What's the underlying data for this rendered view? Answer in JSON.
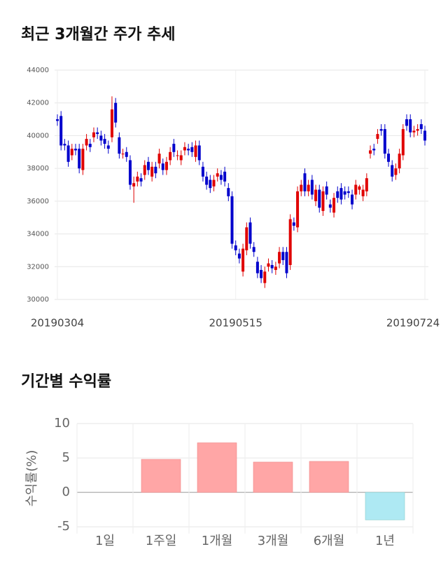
{
  "chart_data": [
    {
      "type": "candlestick",
      "title": "최근 3개월간 주가 추세",
      "categories": [
        "20190304",
        null,
        null,
        null,
        null,
        null,
        null,
        null,
        null,
        null,
        null,
        null,
        null,
        null,
        null,
        null,
        null,
        null,
        null,
        null,
        null,
        null,
        null,
        null,
        null,
        null,
        null,
        null,
        null,
        null,
        null,
        null,
        null,
        null,
        null,
        null,
        null,
        null,
        null,
        null,
        null,
        null,
        null,
        null,
        null,
        null,
        null,
        null,
        null,
        "20190515",
        null,
        null,
        null,
        null,
        null,
        null,
        null,
        null,
        null,
        null,
        null,
        null,
        null,
        null,
        null,
        null,
        null,
        null,
        null,
        null,
        null,
        null,
        null,
        null,
        null,
        null,
        null,
        null,
        null,
        null,
        null,
        null,
        null,
        null,
        null,
        null,
        null,
        null,
        null,
        null,
        null,
        null,
        null,
        null,
        null,
        null,
        null,
        null,
        null,
        null,
        null,
        "20190724"
      ],
      "open": [
        41000,
        41200,
        39500,
        39400,
        38800,
        39200,
        39200,
        37900,
        39400,
        39500,
        39900,
        40200,
        40000,
        39800,
        39400,
        39900,
        42000,
        39900,
        38900,
        39000,
        38500,
        36900,
        37200,
        37400,
        37600,
        38400,
        37500,
        38100,
        38300,
        38300,
        37900,
        38500,
        39500,
        38800,
        38500,
        39100,
        39200,
        39300,
        38700,
        39400,
        38100,
        37500,
        37300,
        36900,
        37500,
        37600,
        37800,
        36800,
        36300,
        33300,
        32800,
        31700,
        33000,
        34700,
        33200,
        32300,
        31800,
        31000,
        32000,
        32100,
        31800,
        32200,
        32900,
        32900,
        32100,
        34700,
        34400,
        36600,
        37700,
        36600,
        37300,
        36000,
        36700,
        35400,
        36900,
        35800,
        35300,
        36600,
        36800,
        36600,
        36600,
        36400,
        36400,
        36700,
        36300,
        36600,
        38900,
        39200,
        39800,
        40400,
        40400,
        38900,
        38200,
        37600,
        38000,
        38800,
        41000,
        41000,
        40200,
        40300,
        40700,
        40300
      ],
      "high": [
        41300,
        41500,
        39800,
        39700,
        39500,
        39500,
        39500,
        39500,
        40100,
        39800,
        40500,
        40500,
        40300,
        40100,
        39700,
        42400,
        42300,
        40200,
        39200,
        39300,
        38800,
        37500,
        37800,
        37700,
        38500,
        38700,
        38400,
        38400,
        39200,
        38600,
        38700,
        39300,
        39800,
        39100,
        39100,
        39600,
        39500,
        39600,
        39700,
        39700,
        38400,
        37800,
        37600,
        37600,
        38000,
        37900,
        38100,
        37100,
        36600,
        33600,
        33100,
        33400,
        34700,
        35000,
        33500,
        32600,
        32100,
        32000,
        32500,
        32400,
        32300,
        33200,
        33200,
        33200,
        35200,
        35000,
        36900,
        37300,
        38000,
        37300,
        37600,
        37000,
        37000,
        36900,
        37200,
        36100,
        36500,
        36900,
        37100,
        36900,
        36900,
        36700,
        37300,
        37000,
        37000,
        37700,
        39400,
        39500,
        40400,
        40700,
        40700,
        39200,
        38500,
        38300,
        39200,
        40700,
        41300,
        41300,
        40600,
        40700,
        41000,
        40600
      ],
      "low": [
        40600,
        39100,
        39100,
        38100,
        38500,
        38800,
        37700,
        37600,
        39100,
        39000,
        39600,
        39800,
        39400,
        39200,
        38900,
        39600,
        40500,
        38600,
        38600,
        38400,
        36700,
        35900,
        36900,
        36900,
        37300,
        37600,
        37200,
        37400,
        38000,
        37600,
        37600,
        38200,
        38700,
        38500,
        38200,
        38800,
        38800,
        38700,
        38400,
        38200,
        37200,
        36700,
        36500,
        36600,
        37200,
        37000,
        36900,
        36000,
        33100,
        32700,
        32200,
        31400,
        32700,
        33100,
        32600,
        31300,
        31000,
        30700,
        31700,
        31600,
        31500,
        31900,
        32100,
        31300,
        31800,
        34200,
        34100,
        36300,
        36300,
        36300,
        36100,
        35700,
        35300,
        35100,
        36100,
        35300,
        35000,
        35900,
        35800,
        36100,
        36200,
        35500,
        36100,
        36400,
        36000,
        36300,
        38600,
        38800,
        39500,
        40000,
        38600,
        38100,
        37200,
        37300,
        37700,
        38500,
        40300,
        39900,
        39900,
        40000,
        40100,
        39400
      ],
      "close": [
        40900,
        39400,
        39400,
        38400,
        39200,
        39100,
        38000,
        39200,
        39800,
        39300,
        40200,
        40100,
        39700,
        39500,
        39200,
        41600,
        40800,
        38900,
        38900,
        38700,
        37000,
        37100,
        37500,
        37200,
        38200,
        37900,
        38100,
        37700,
        38900,
        37900,
        38400,
        39000,
        39000,
        38800,
        38800,
        39300,
        39100,
        39000,
        39400,
        38500,
        37500,
        37000,
        36800,
        37300,
        37700,
        37300,
        37200,
        36300,
        33400,
        33000,
        32500,
        33100,
        34400,
        33400,
        32900,
        31600,
        31300,
        31700,
        32200,
        31900,
        32000,
        32900,
        32400,
        31600,
        34900,
        34500,
        36600,
        37000,
        36600,
        37000,
        36400,
        36700,
        35600,
        36600,
        36400,
        35600,
        36200,
        36200,
        36100,
        36400,
        36500,
        35800,
        37000,
        36900,
        36700,
        37400,
        39100,
        39100,
        40100,
        40300,
        38900,
        38400,
        37500,
        38000,
        38900,
        40400,
        40600,
        40200,
        40300,
        40400,
        40400,
        39700
      ],
      "up_color": "#e00000",
      "down_color": "#0000cc",
      "ylim": [
        30000,
        44000
      ],
      "yticks": [
        30000,
        32000,
        34000,
        36000,
        38000,
        40000,
        42000,
        44000
      ],
      "grid": true
    },
    {
      "type": "bar",
      "title": "기간별 수익률",
      "y_label": "수익률(%)",
      "categories": [
        "1일",
        "1주일",
        "1개월",
        "3개월",
        "6개월",
        "1년"
      ],
      "values": [
        0,
        4.8,
        7.2,
        4.4,
        4.5,
        -4.0
      ],
      "positive_color": "#ffa6a6",
      "negative_color": "#aee9f3",
      "ylim": [
        -6,
        10
      ],
      "yticks": [
        -5,
        0,
        5,
        10
      ],
      "grid": true
    }
  ]
}
